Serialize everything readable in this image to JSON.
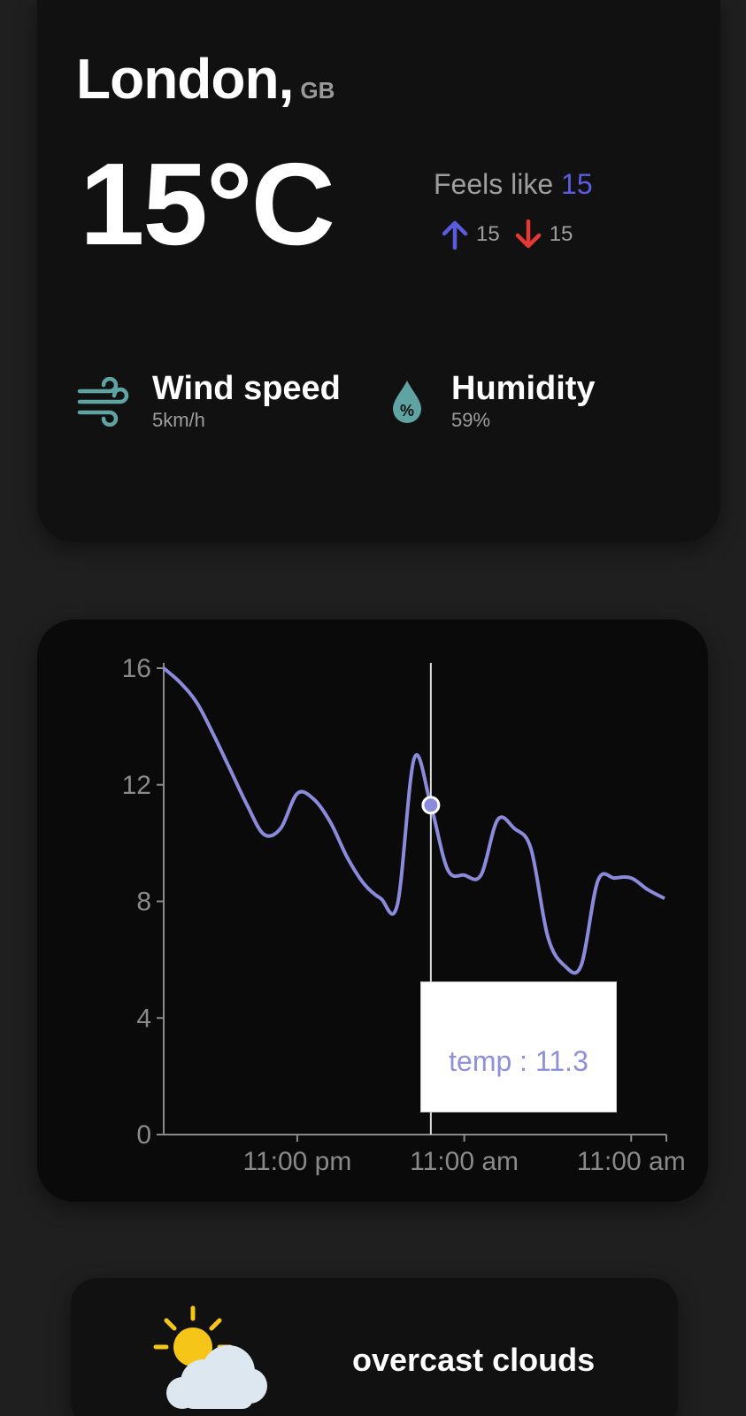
{
  "location": {
    "city": "London,",
    "country": "GB"
  },
  "current": {
    "temperature": "15°C",
    "feels_like_label": "Feels like",
    "feels_like_value": "15",
    "temp_max": "15",
    "temp_min": "15"
  },
  "metrics": {
    "wind": {
      "title": "Wind speed",
      "value": "5km/h",
      "icon": "wind-icon"
    },
    "humidity": {
      "title": "Humidity",
      "value": "59%",
      "icon": "humidity-drop-icon"
    }
  },
  "colors": {
    "accent_blue": "#5b5bdf",
    "down_red": "#e53935",
    "icon_teal": "#5fa3a3",
    "line": "#8b8bdc",
    "tooltip_text": "#8f8fdc"
  },
  "chart_data": {
    "type": "line",
    "series": [
      {
        "key": "temp",
        "values": [
          16.0,
          15.5,
          14.8,
          13.7,
          12.5,
          11.3,
          10.3,
          10.5,
          11.7,
          11.5,
          10.7,
          9.5,
          8.6,
          8.1,
          7.9,
          12.9,
          11.3,
          9.1,
          8.9,
          8.9,
          10.8,
          10.5,
          9.8,
          6.8,
          5.8,
          5.8,
          8.7,
          8.8,
          8.8,
          8.4,
          8.1
        ]
      }
    ],
    "x_tick_labels": [
      "11:00 pm",
      "11:00 am",
      "11:00 am"
    ],
    "x_tick_indices": [
      8,
      18,
      28
    ],
    "y_ticks": [
      0,
      4,
      8,
      12,
      16
    ],
    "ylim": [
      0,
      16
    ],
    "active_index": 16,
    "tooltip": {
      "text": "temp : 11.3"
    }
  },
  "condition": {
    "text": "overcast clouds",
    "icon": "partly-cloudy-icon"
  }
}
